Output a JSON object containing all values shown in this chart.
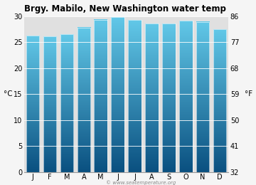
{
  "title": "Brgy. Mabilo, New Washington water temp",
  "months": [
    "J",
    "F",
    "M",
    "A",
    "M",
    "J",
    "J",
    "A",
    "S",
    "O",
    "N",
    "D"
  ],
  "values_c": [
    26.2,
    26.1,
    26.5,
    27.8,
    29.3,
    29.8,
    29.2,
    28.6,
    28.6,
    29.1,
    28.9,
    27.5
  ],
  "ylim_c": [
    0,
    30
  ],
  "yticks_c": [
    0,
    5,
    10,
    15,
    20,
    25,
    30
  ],
  "yticks_f": [
    32,
    41,
    50,
    59,
    68,
    77,
    86
  ],
  "ylabel_left": "°C",
  "ylabel_right": "°F",
  "bar_color_top": "#62c8e8",
  "bar_color_bottom": "#0a5080",
  "plot_bg_color": "#e0e0e0",
  "fig_bg_color": "#f5f5f5",
  "title_fontsize": 8.5,
  "tick_fontsize": 7,
  "label_fontsize": 7.5,
  "watermark": "© www.seatemperature.org"
}
